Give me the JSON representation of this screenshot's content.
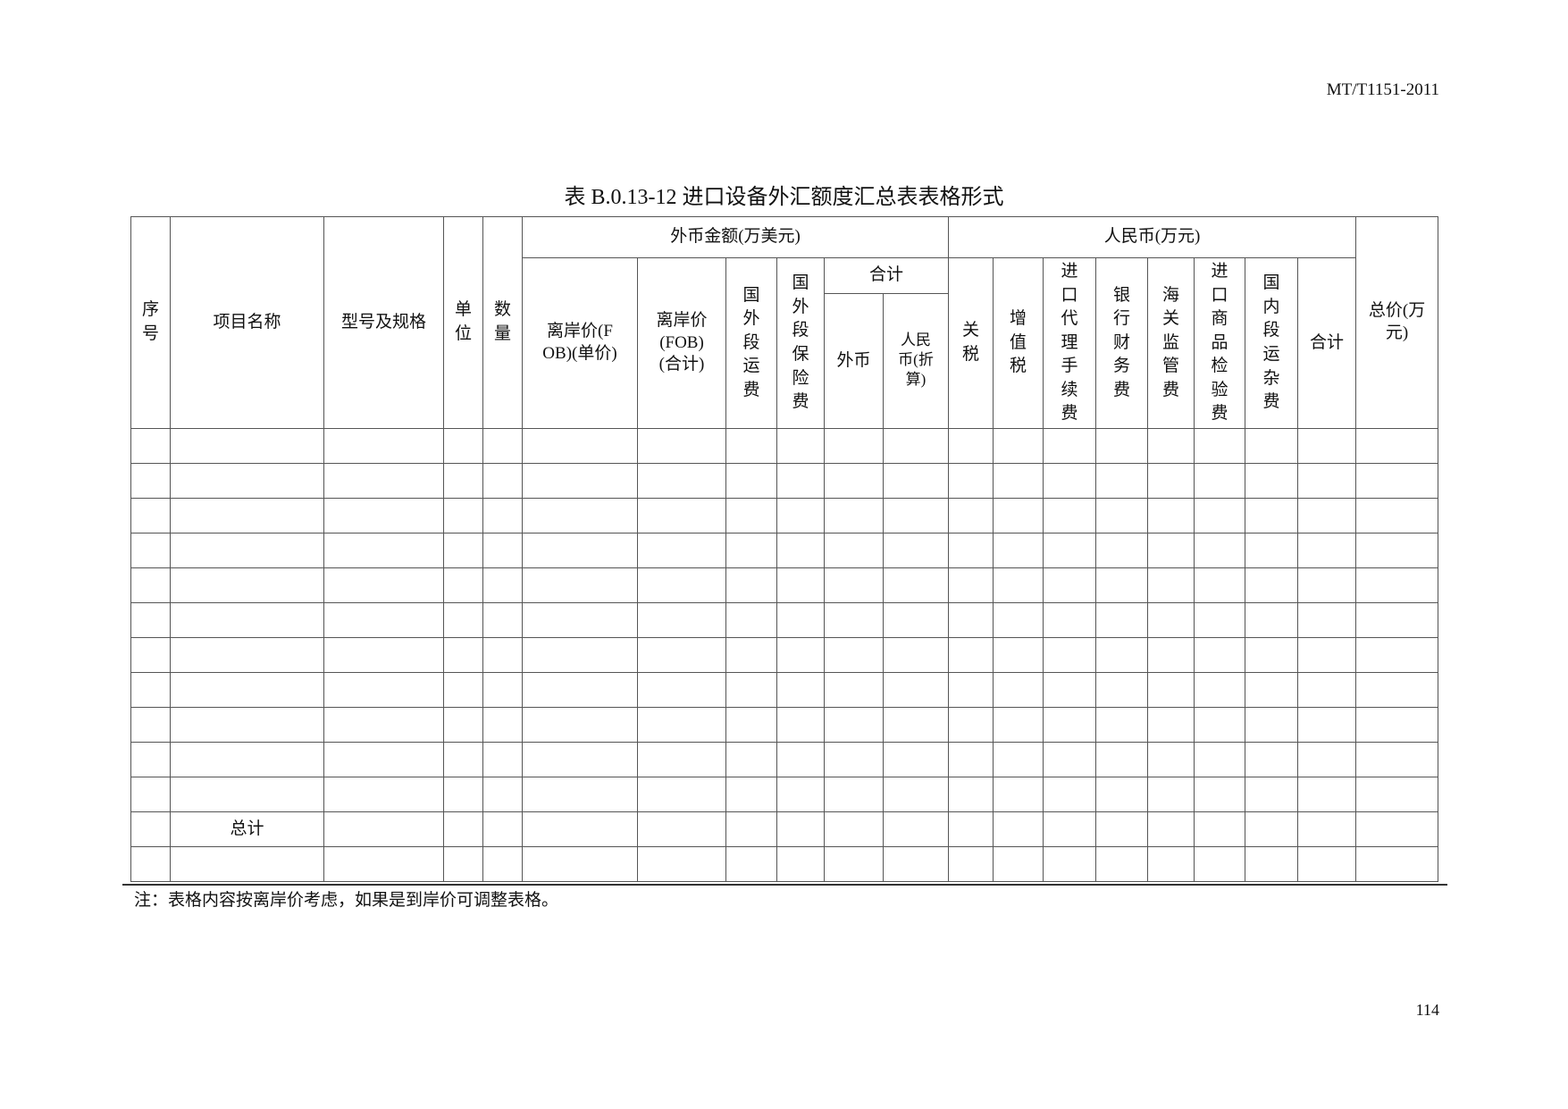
{
  "header": {
    "standard_no": "MT/T1151-2011"
  },
  "title": "表 B.0.13-12  进口设备外汇额度汇总表表格形式",
  "table": {
    "seq": "序号",
    "name": "项目名称",
    "model": "型号及规格",
    "unit": "单位",
    "qty": "数量",
    "foreign_group": "外币金额(万美元)",
    "fob_unit": "离岸价(FOB)(单价)",
    "fob_total": "离岸价(FOB)(合计)",
    "freight": "国外段运费",
    "insurance": "国外段保险费",
    "subtotal": "合计",
    "sub_foreign": "外币",
    "sub_rmb": "人民币(折算)",
    "rmb_group": "人民币(万元)",
    "tariff": "关税",
    "vat": "增值税",
    "agency": "进口代理手续费",
    "bank": "银行财务费",
    "customs": "海关监管费",
    "inspection": "进口商品检验费",
    "domestic": "国内段运杂费",
    "rmb_total": "合计",
    "grand": "总价(万元)",
    "total_row_label": "总计"
  },
  "note": "注：表格内容按离岸价考虑，如果是到岸价可调整表格。",
  "page_number": "114"
}
